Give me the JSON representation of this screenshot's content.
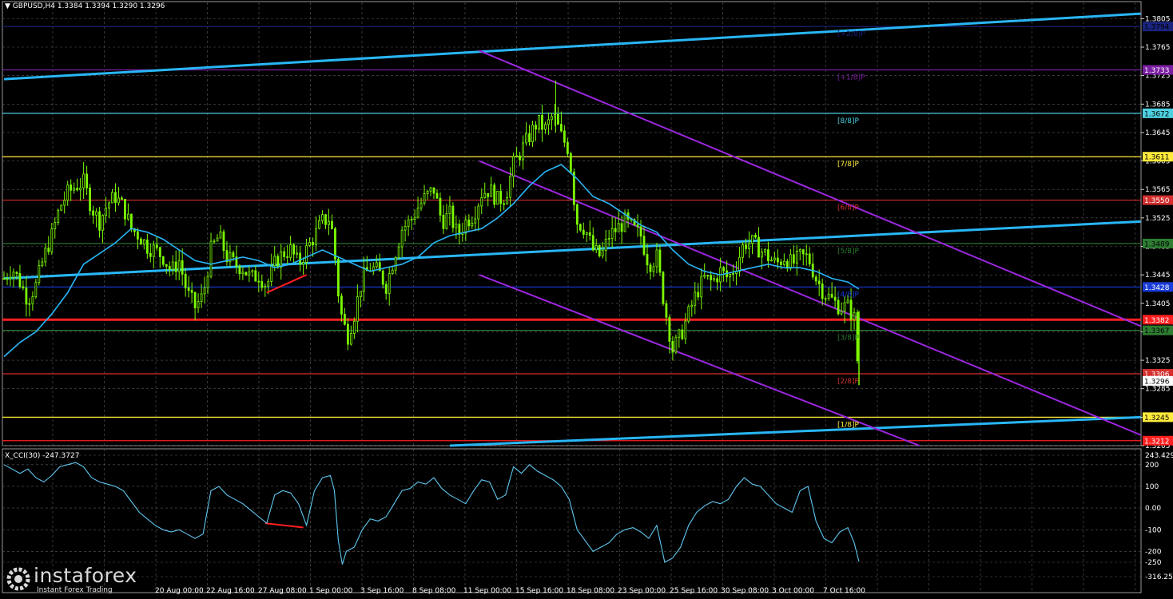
{
  "header": {
    "symbol": "GBPUSD,H4",
    "ohlc": "1.3384 1.3394 1.3290 1.3296",
    "menu_glyph": "▼"
  },
  "indicator": {
    "label": "X_CCI(30) -247.3727"
  },
  "logo": {
    "text": "instaforex",
    "tagline": "Instant Forex Trading"
  },
  "chart_data": {
    "type": "candlestick",
    "symbol": "GBPUSD",
    "timeframe": "H4",
    "price_axis": {
      "ylim": [
        1.3205,
        1.382
      ],
      "ticks": [
        "1.3805",
        "1.3765",
        "1.3725",
        "1.3685",
        "1.3645",
        "1.3605",
        "1.3565",
        "1.3525",
        "1.3485",
        "1.3445",
        "1.3405",
        "1.3365",
        "1.3325",
        "1.3285",
        "1.3245",
        "1.3205"
      ]
    },
    "x_ticks": [
      "20 Aug 00:00",
      "22 Aug 16:00",
      "27 Aug 08:00",
      "1 Sep 00:00",
      "3 Sep 16:00",
      "8 Sep 08:00",
      "11 Sep 00:00",
      "15 Sep 16:00",
      "18 Sep 08:00",
      "23 Sep 00:00",
      "25 Sep 16:00",
      "30 Sep 08:00",
      "3 Oct 00:00",
      "7 Oct 16:00"
    ],
    "murrey_levels": [
      {
        "label": "[+2/8]P",
        "price": "1.3794",
        "value": 1.3794,
        "color": "#1a237e",
        "text_color": "#000000"
      },
      {
        "label": "[+1/8]P",
        "price": "1.3733",
        "value": 1.3733,
        "color": "#7b1fa2",
        "text_color": "#ffffff"
      },
      {
        "label": "[8/8]P",
        "price": "1.3672",
        "value": 1.3672,
        "color": "#4dd0e1",
        "text_color": "#000000"
      },
      {
        "label": "[7/8]P",
        "price": "1.3611",
        "value": 1.3611,
        "color": "#ffeb3b",
        "text_color": "#000000"
      },
      {
        "label": "[6/8]P",
        "price": "1.3550",
        "value": 1.355,
        "color": "#d32f2f",
        "text_color": "#ffffff"
      },
      {
        "label": "[5/8]P",
        "price": "1.3489",
        "value": 1.3489,
        "color": "#2e7d32",
        "text_color": "#000000"
      },
      {
        "label": "[4/8]P",
        "price": "1.3428",
        "value": 1.3428,
        "color": "#1a3cd8",
        "text_color": "#ffffff"
      },
      {
        "label": "[3/8]P",
        "price": "1.3367",
        "value": 1.3367,
        "color": "#2e7d32",
        "text_color": "#000000"
      },
      {
        "label": "[2/8]P",
        "price": "1.3306",
        "value": 1.3306,
        "color": "#d32f2f",
        "text_color": "#ffffff"
      },
      {
        "label": "[1/8]P",
        "price": "1.3245",
        "value": 1.3245,
        "color": "#ffeb3b",
        "text_color": "#000000"
      },
      {
        "label": "",
        "price": "1.3212",
        "value": 1.3212,
        "color": "#ff1f1f",
        "text_color": "#ffffff"
      }
    ],
    "highlighted_level": {
      "price": "1.3382",
      "value": 1.3382,
      "color": "#ff1f1f"
    },
    "current_price": {
      "price": "1.3296",
      "value": 1.3296
    },
    "close_path": [
      [
        0,
        1.344
      ],
      [
        10,
        1.3455
      ],
      [
        20,
        1.3435
      ],
      [
        30,
        1.341
      ],
      [
        40,
        1.343
      ],
      [
        50,
        1.347
      ],
      [
        60,
        1.35
      ],
      [
        70,
        1.354
      ],
      [
        80,
        1.356
      ],
      [
        90,
        1.357
      ],
      [
        100,
        1.3575
      ],
      [
        110,
        1.354
      ],
      [
        120,
        1.352
      ],
      [
        130,
        1.3545
      ],
      [
        140,
        1.3555
      ],
      [
        150,
        1.354
      ],
      [
        160,
        1.351
      ],
      [
        170,
        1.35
      ],
      [
        180,
        1.3485
      ],
      [
        190,
        1.348
      ],
      [
        200,
        1.347
      ],
      [
        210,
        1.345
      ],
      [
        220,
        1.3465
      ],
      [
        230,
        1.342
      ],
      [
        240,
        1.34
      ],
      [
        250,
        1.3415
      ],
      [
        260,
        1.348
      ],
      [
        270,
        1.35
      ],
      [
        280,
        1.347
      ],
      [
        290,
        1.346
      ],
      [
        300,
        1.3455
      ],
      [
        310,
        1.344
      ],
      [
        320,
        1.3445
      ],
      [
        330,
        1.343
      ],
      [
        340,
        1.346
      ],
      [
        350,
        1.3475
      ],
      [
        360,
        1.348
      ],
      [
        370,
        1.346
      ],
      [
        380,
        1.348
      ],
      [
        390,
        1.35
      ],
      [
        400,
        1.352
      ],
      [
        410,
        1.3525
      ],
      [
        415,
        1.348
      ],
      [
        420,
        1.342
      ],
      [
        425,
        1.338
      ],
      [
        432,
        1.336
      ],
      [
        440,
        1.339
      ],
      [
        450,
        1.344
      ],
      [
        460,
        1.3455
      ],
      [
        470,
        1.345
      ],
      [
        480,
        1.343
      ],
      [
        490,
        1.347
      ],
      [
        500,
        1.351
      ],
      [
        510,
        1.352
      ],
      [
        520,
        1.354
      ],
      [
        530,
        1.3555
      ],
      [
        540,
        1.3565
      ],
      [
        550,
        1.352
      ],
      [
        560,
        1.353
      ],
      [
        570,
        1.35
      ],
      [
        580,
        1.352
      ],
      [
        590,
        1.353
      ],
      [
        600,
        1.356
      ],
      [
        610,
        1.3565
      ],
      [
        620,
        1.355
      ],
      [
        630,
        1.3555
      ],
      [
        640,
        1.36
      ],
      [
        650,
        1.362
      ],
      [
        660,
        1.364
      ],
      [
        670,
        1.366
      ],
      [
        680,
        1.365
      ],
      [
        690,
        1.367
      ],
      [
        700,
        1.364
      ],
      [
        710,
        1.362
      ],
      [
        715,
        1.356
      ],
      [
        720,
        1.352
      ],
      [
        730,
        1.351
      ],
      [
        740,
        1.348
      ],
      [
        750,
        1.347
      ],
      [
        760,
        1.35
      ],
      [
        770,
        1.351
      ],
      [
        780,
        1.352
      ],
      [
        790,
        1.351
      ],
      [
        800,
        1.35
      ],
      [
        810,
        1.346
      ],
      [
        820,
        1.347
      ],
      [
        830,
        1.34
      ],
      [
        840,
        1.334
      ],
      [
        850,
        1.336
      ],
      [
        860,
        1.339
      ],
      [
        870,
        1.342
      ],
      [
        880,
        1.344
      ],
      [
        890,
        1.3435
      ],
      [
        900,
        1.345
      ],
      [
        910,
        1.344
      ],
      [
        920,
        1.346
      ],
      [
        930,
        1.349
      ],
      [
        940,
        1.349
      ],
      [
        950,
        1.348
      ],
      [
        960,
        1.347
      ],
      [
        970,
        1.346
      ],
      [
        980,
        1.347
      ],
      [
        990,
        1.346
      ],
      [
        1000,
        1.347
      ],
      [
        1010,
        1.347
      ],
      [
        1020,
        1.344
      ],
      [
        1030,
        1.342
      ],
      [
        1040,
        1.341
      ],
      [
        1050,
        1.34
      ],
      [
        1060,
        1.34
      ],
      [
        1068,
        1.3384
      ],
      [
        1074,
        1.3296
      ]
    ],
    "ma_path": [
      [
        0,
        1.333
      ],
      [
        20,
        1.335
      ],
      [
        40,
        1.3365
      ],
      [
        60,
        1.339
      ],
      [
        80,
        1.342
      ],
      [
        100,
        1.346
      ],
      [
        120,
        1.3475
      ],
      [
        140,
        1.349
      ],
      [
        160,
        1.351
      ],
      [
        180,
        1.3505
      ],
      [
        200,
        1.3495
      ],
      [
        220,
        1.348
      ],
      [
        240,
        1.3465
      ],
      [
        260,
        1.346
      ],
      [
        280,
        1.3465
      ],
      [
        300,
        1.347
      ],
      [
        320,
        1.3465
      ],
      [
        340,
        1.3455
      ],
      [
        360,
        1.346
      ],
      [
        380,
        1.347
      ],
      [
        400,
        1.348
      ],
      [
        420,
        1.347
      ],
      [
        440,
        1.346
      ],
      [
        460,
        1.345
      ],
      [
        480,
        1.3455
      ],
      [
        500,
        1.346
      ],
      [
        520,
        1.347
      ],
      [
        540,
        1.349
      ],
      [
        560,
        1.35
      ],
      [
        580,
        1.3505
      ],
      [
        600,
        1.351
      ],
      [
        620,
        1.3525
      ],
      [
        640,
        1.3545
      ],
      [
        660,
        1.357
      ],
      [
        680,
        1.359
      ],
      [
        700,
        1.36
      ],
      [
        720,
        1.358
      ],
      [
        740,
        1.3555
      ],
      [
        760,
        1.3545
      ],
      [
        780,
        1.353
      ],
      [
        800,
        1.3515
      ],
      [
        820,
        1.3505
      ],
      [
        840,
        1.348
      ],
      [
        860,
        1.346
      ],
      [
        880,
        1.345
      ],
      [
        900,
        1.3445
      ],
      [
        920,
        1.345
      ],
      [
        940,
        1.3455
      ],
      [
        960,
        1.346
      ],
      [
        980,
        1.3455
      ],
      [
        1000,
        1.3455
      ],
      [
        1020,
        1.345
      ],
      [
        1040,
        1.344
      ],
      [
        1060,
        1.3435
      ],
      [
        1074,
        1.3425
      ]
    ],
    "annotation_segments": [
      {
        "id": "price-divergence",
        "from": [
          330,
          1.342
        ],
        "to": [
          380,
          1.3445
        ],
        "color": "#ff2020"
      },
      {
        "id": "cci-divergence",
        "from": [
          328,
          -70
        ],
        "to": [
          376,
          -90
        ],
        "color": "#ff2020"
      }
    ],
    "regression_lines_blue": [
      {
        "from": [
          0,
          1.372
        ],
        "to": [
          1428,
          1.3812
        ]
      },
      {
        "from": [
          0,
          1.344
        ],
        "to": [
          1428,
          1.352
        ]
      },
      {
        "from": [
          560,
          1.3205
        ],
        "to": [
          1428,
          1.3245
        ]
      }
    ],
    "channel_lines_purple": [
      {
        "from": [
          597,
          1.376
        ],
        "to": [
          1428,
          1.3373
        ]
      },
      {
        "from": [
          597,
          1.3605
        ],
        "to": [
          1428,
          1.322
        ]
      },
      {
        "from": [
          597,
          1.3445
        ],
        "to": [
          1150,
          1.3205
        ]
      }
    ],
    "cci": {
      "name": "X_CCI(30)",
      "current": -247.3727,
      "axis_ticks": [
        "243.429",
        "200",
        "100",
        "0.00",
        "-100",
        "-200",
        "-250",
        "-316.257"
      ],
      "ylim": [
        -316.257,
        243.429
      ],
      "values": [
        [
          0,
          200
        ],
        [
          10,
          180
        ],
        [
          20,
          160
        ],
        [
          30,
          180
        ],
        [
          40,
          140
        ],
        [
          50,
          120
        ],
        [
          60,
          150
        ],
        [
          70,
          190
        ],
        [
          80,
          200
        ],
        [
          90,
          210
        ],
        [
          100,
          190
        ],
        [
          110,
          140
        ],
        [
          120,
          120
        ],
        [
          130,
          110
        ],
        [
          140,
          100
        ],
        [
          150,
          80
        ],
        [
          160,
          30
        ],
        [
          170,
          -20
        ],
        [
          180,
          -50
        ],
        [
          190,
          -80
        ],
        [
          200,
          -100
        ],
        [
          210,
          -110
        ],
        [
          220,
          -100
        ],
        [
          230,
          -120
        ],
        [
          240,
          -140
        ],
        [
          250,
          -120
        ],
        [
          260,
          80
        ],
        [
          270,
          100
        ],
        [
          280,
          60
        ],
        [
          290,
          40
        ],
        [
          300,
          20
        ],
        [
          310,
          -10
        ],
        [
          320,
          -40
        ],
        [
          330,
          -70
        ],
        [
          340,
          60
        ],
        [
          350,
          80
        ],
        [
          360,
          70
        ],
        [
          370,
          20
        ],
        [
          380,
          -80
        ],
        [
          390,
          80
        ],
        [
          400,
          140
        ],
        [
          410,
          150
        ],
        [
          415,
          80
        ],
        [
          420,
          -150
        ],
        [
          425,
          -260
        ],
        [
          430,
          -200
        ],
        [
          440,
          -180
        ],
        [
          450,
          -100
        ],
        [
          460,
          -50
        ],
        [
          470,
          -60
        ],
        [
          480,
          -40
        ],
        [
          490,
          20
        ],
        [
          500,
          80
        ],
        [
          510,
          90
        ],
        [
          520,
          120
        ],
        [
          530,
          110
        ],
        [
          540,
          140
        ],
        [
          550,
          90
        ],
        [
          560,
          60
        ],
        [
          570,
          40
        ],
        [
          580,
          20
        ],
        [
          590,
          80
        ],
        [
          600,
          130
        ],
        [
          610,
          120
        ],
        [
          620,
          40
        ],
        [
          630,
          60
        ],
        [
          640,
          190
        ],
        [
          650,
          160
        ],
        [
          660,
          200
        ],
        [
          670,
          170
        ],
        [
          680,
          150
        ],
        [
          690,
          130
        ],
        [
          700,
          100
        ],
        [
          710,
          40
        ],
        [
          720,
          -100
        ],
        [
          730,
          -150
        ],
        [
          740,
          -200
        ],
        [
          750,
          -180
        ],
        [
          760,
          -160
        ],
        [
          770,
          -120
        ],
        [
          780,
          -100
        ],
        [
          790,
          -90
        ],
        [
          800,
          -110
        ],
        [
          810,
          -140
        ],
        [
          820,
          -80
        ],
        [
          830,
          -250
        ],
        [
          840,
          -230
        ],
        [
          850,
          -180
        ],
        [
          860,
          -80
        ],
        [
          870,
          -20
        ],
        [
          880,
          10
        ],
        [
          890,
          30
        ],
        [
          900,
          20
        ],
        [
          910,
          40
        ],
        [
          920,
          100
        ],
        [
          930,
          140
        ],
        [
          940,
          110
        ],
        [
          950,
          100
        ],
        [
          960,
          60
        ],
        [
          970,
          20
        ],
        [
          980,
          0
        ],
        [
          990,
          -20
        ],
        [
          1000,
          80
        ],
        [
          1010,
          100
        ],
        [
          1020,
          -60
        ],
        [
          1030,
          -140
        ],
        [
          1040,
          -160
        ],
        [
          1050,
          -110
        ],
        [
          1060,
          -90
        ],
        [
          1068,
          -160
        ],
        [
          1074,
          -247
        ]
      ]
    }
  }
}
